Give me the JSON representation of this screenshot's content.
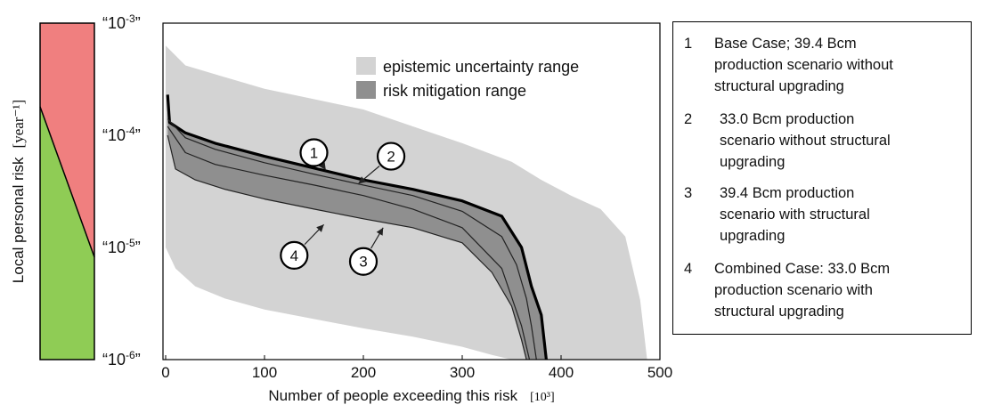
{
  "chart_data": {
    "type": "area",
    "xlabel": "Number of people exceeding this risk",
    "xlabel_unit": "[10³]",
    "ylabel": "Local personal risk",
    "ylabel_unit": "[year⁻¹]",
    "xlim": [
      0,
      500
    ],
    "ylim": [
      1e-06,
      0.001
    ],
    "y_scale": "log",
    "x_ticks": [
      "0",
      "100",
      "200",
      "300",
      "400",
      "500"
    ],
    "y_ticks": [
      {
        "value": 0.001,
        "base": "“10",
        "exp": "-3",
        "close": "”"
      },
      {
        "value": 0.0001,
        "base": "“10",
        "exp": "-4",
        "close": "”"
      },
      {
        "value": 1e-05,
        "base": "“10",
        "exp": "-5",
        "close": "”"
      },
      {
        "value": 1e-06,
        "base": "“10",
        "exp": "-6",
        "close": "”"
      }
    ],
    "legend": [
      {
        "name": "epistemic uncertainty range",
        "color": "#d3d3d3"
      },
      {
        "name": "risk mitigation range",
        "color": "#8f8f8f"
      }
    ],
    "uncertainty_band": {
      "upper": [
        [
          0,
          0.00063
        ],
        [
          20,
          0.00042
        ],
        [
          60,
          0.00033
        ],
        [
          100,
          0.00026
        ],
        [
          150,
          0.00021
        ],
        [
          200,
          0.00017
        ],
        [
          250,
          0.00012
        ],
        [
          300,
          8.5e-05
        ],
        [
          350,
          5.8e-05
        ],
        [
          380,
          4e-05
        ],
        [
          410,
          2.9e-05
        ],
        [
          440,
          2.2e-05
        ],
        [
          465,
          1.25e-05
        ],
        [
          480,
          3.4e-06
        ],
        [
          487,
          1e-06
        ]
      ],
      "lower": [
        [
          0,
          1e-05
        ],
        [
          10,
          6.5e-06
        ],
        [
          30,
          4.5e-06
        ],
        [
          60,
          3.5e-06
        ],
        [
          100,
          2.8e-06
        ],
        [
          150,
          2.3e-06
        ],
        [
          200,
          1.9e-06
        ],
        [
          250,
          1.6e-06
        ],
        [
          300,
          1.3e-06
        ],
        [
          330,
          1.1e-06
        ],
        [
          350,
          1e-06
        ]
      ]
    },
    "series": [
      {
        "name": "1",
        "width": 3.2,
        "color": "#000000",
        "points": [
          [
            2,
            0.00023
          ],
          [
            4,
            0.00013
          ],
          [
            20,
            0.000105
          ],
          [
            50,
            8.5e-05
          ],
          [
            100,
            6.5e-05
          ],
          [
            150,
            5.1e-05
          ],
          [
            200,
            4e-05
          ],
          [
            250,
            3.3e-05
          ],
          [
            300,
            2.6e-05
          ],
          [
            340,
            1.9e-05
          ],
          [
            360,
            1e-05
          ],
          [
            370,
            4.5e-06
          ],
          [
            380,
            2.5e-06
          ],
          [
            385,
            1e-06
          ]
        ]
      },
      {
        "name": "2",
        "width": 1.2,
        "color": "#222222",
        "points": [
          [
            2,
            0.00014
          ],
          [
            20,
            9.5e-05
          ],
          [
            50,
            7.5e-05
          ],
          [
            100,
            5.7e-05
          ],
          [
            150,
            4.5e-05
          ],
          [
            200,
            3.6e-05
          ],
          [
            250,
            2.9e-05
          ],
          [
            300,
            2.1e-05
          ],
          [
            340,
            1.25e-05
          ],
          [
            355,
            7e-06
          ],
          [
            365,
            3.5e-06
          ],
          [
            370,
            2e-06
          ],
          [
            375,
            1e-06
          ]
        ]
      },
      {
        "name": "3",
        "width": 1.2,
        "color": "#222222",
        "points": [
          [
            2,
            0.00012
          ],
          [
            20,
            7e-05
          ],
          [
            50,
            5.5e-05
          ],
          [
            100,
            4.4e-05
          ],
          [
            150,
            3.6e-05
          ],
          [
            200,
            2.9e-05
          ],
          [
            250,
            2.2e-05
          ],
          [
            300,
            1.5e-05
          ],
          [
            340,
            6.5e-06
          ],
          [
            360,
            2e-06
          ],
          [
            368,
            1e-06
          ]
        ]
      },
      {
        "name": "4",
        "width": 1.2,
        "color": "#222222",
        "points": [
          [
            2,
            0.0001
          ],
          [
            10,
            5e-05
          ],
          [
            30,
            4e-05
          ],
          [
            60,
            3.3e-05
          ],
          [
            100,
            2.7e-05
          ],
          [
            150,
            2.2e-05
          ],
          [
            200,
            1.8e-05
          ],
          [
            250,
            1.5e-05
          ],
          [
            300,
            1.1e-05
          ],
          [
            330,
            6e-06
          ],
          [
            350,
            3e-06
          ],
          [
            360,
            1.5e-06
          ],
          [
            365,
            1e-06
          ]
        ]
      }
    ],
    "callouts": [
      {
        "label": "1",
        "circle": [
          150,
          7e-05
        ],
        "target": [
          162,
          4.9e-05
        ]
      },
      {
        "label": "2",
        "circle": [
          228,
          6.5e-05
        ],
        "target": [
          195,
          3.7e-05
        ]
      },
      {
        "label": "3",
        "circle": [
          200,
          7.5e-06
        ],
        "target": [
          220,
          1.5e-05
        ]
      },
      {
        "label": "4",
        "circle": [
          130,
          8.5e-06
        ],
        "target": [
          160,
          1.6e-05
        ]
      }
    ],
    "risk_bar": {
      "upper_color": "#f07f7f",
      "lower_color": "#8fcc55",
      "diagonal_from": 0.00018,
      "diagonal_to": 8.2e-06
    }
  },
  "legend_panel": [
    {
      "num": "1",
      "text": "Base Case; 39.4 Bcm\nproduction scenario without\nstructural upgrading"
    },
    {
      "num": "2",
      "text": "33.0 Bcm production\nscenario without structural\nupgrading"
    },
    {
      "num": "3",
      "text": "39.4 Bcm production\nscenario with structural\nupgrading"
    },
    {
      "num": "4",
      "text": "Combined Case: 33.0 Bcm\nproduction scenario with\nstructural upgrading"
    }
  ]
}
